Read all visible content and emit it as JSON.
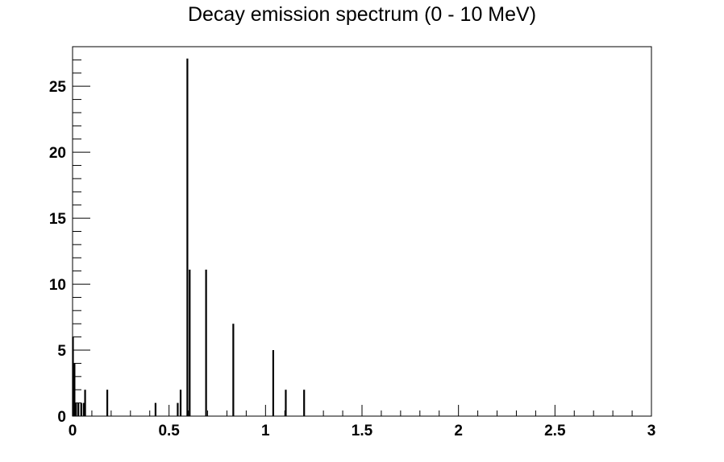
{
  "chart_data": {
    "type": "bar",
    "title": "Decay emission spectrum (0 - 10 MeV)",
    "xlabel": "",
    "ylabel": "",
    "xlim": [
      0,
      3
    ],
    "ylim": [
      0,
      28
    ],
    "grid": false,
    "x_ticks": [
      0,
      0.5,
      1,
      1.5,
      2,
      2.5,
      3
    ],
    "x_tick_labels": [
      "0",
      "0.5",
      "1",
      "1.5",
      "2",
      "2.5",
      "3"
    ],
    "y_ticks": [
      0,
      5,
      10,
      15,
      20,
      25
    ],
    "y_tick_labels": [
      "0",
      "5",
      "10",
      "15",
      "20",
      "25"
    ],
    "bar_color": "#000000",
    "peaks": {
      "x": [
        0.002,
        0.01,
        0.018,
        0.03,
        0.045,
        0.058,
        0.065,
        0.18,
        0.43,
        0.545,
        0.56,
        0.595,
        0.607,
        0.692,
        0.833,
        1.04,
        1.105,
        1.2
      ],
      "y": [
        6,
        4,
        1,
        1,
        1,
        1,
        2,
        2,
        1,
        1,
        2,
        27.1,
        11.1,
        11.1,
        7,
        5,
        2,
        2
      ]
    }
  }
}
